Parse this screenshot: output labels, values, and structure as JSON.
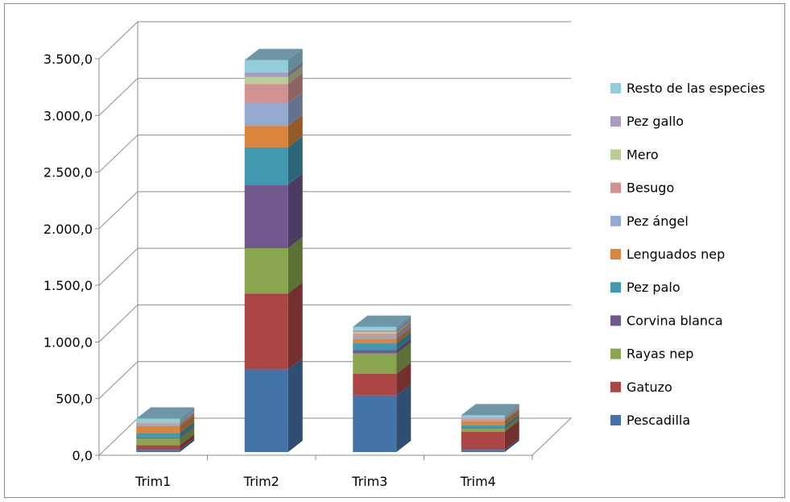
{
  "chart_data": {
    "type": "bar",
    "stacked": true,
    "three_d": true,
    "categories": [
      "Trim1",
      "Trim2",
      "Trim3",
      "Trim4"
    ],
    "ylim": [
      0,
      3500
    ],
    "y_ticks": [
      "0,0",
      "500,0",
      "1.000,0",
      "1.500,0",
      "2.000,0",
      "2.500,0",
      "3.000,0",
      "3.500,0"
    ],
    "grid": true,
    "legend_position": "right",
    "series": [
      {
        "name": "Pescadilla",
        "color": "#4572A7",
        "values": [
          20,
          730,
          500,
          20
        ]
      },
      {
        "name": "Gatuzo",
        "color": "#AA4643",
        "values": [
          40,
          670,
          190,
          160
        ]
      },
      {
        "name": "Rayas nep",
        "color": "#89A54E",
        "values": [
          60,
          400,
          180,
          25
        ]
      },
      {
        "name": "Corvina blanca",
        "color": "#71588F",
        "values": [
          10,
          560,
          30,
          5
        ]
      },
      {
        "name": "Pez palo",
        "color": "#4198AF",
        "values": [
          40,
          330,
          60,
          25
        ]
      },
      {
        "name": "Lenguados nep",
        "color": "#DB843D",
        "values": [
          60,
          190,
          40,
          40
        ]
      },
      {
        "name": "Pez ángel",
        "color": "#93A9CF",
        "values": [
          15,
          200,
          25,
          10
        ]
      },
      {
        "name": "Besugo",
        "color": "#D19392",
        "values": [
          10,
          170,
          20,
          10
        ]
      },
      {
        "name": "Mero",
        "color": "#B9CD96",
        "values": [
          5,
          60,
          15,
          5
        ]
      },
      {
        "name": "Pez gallo",
        "color": "#A99BBD",
        "values": [
          5,
          40,
          15,
          5
        ]
      },
      {
        "name": "Resto de las especies",
        "color": "#92CDDC",
        "values": [
          30,
          110,
          30,
          20
        ]
      }
    ]
  }
}
